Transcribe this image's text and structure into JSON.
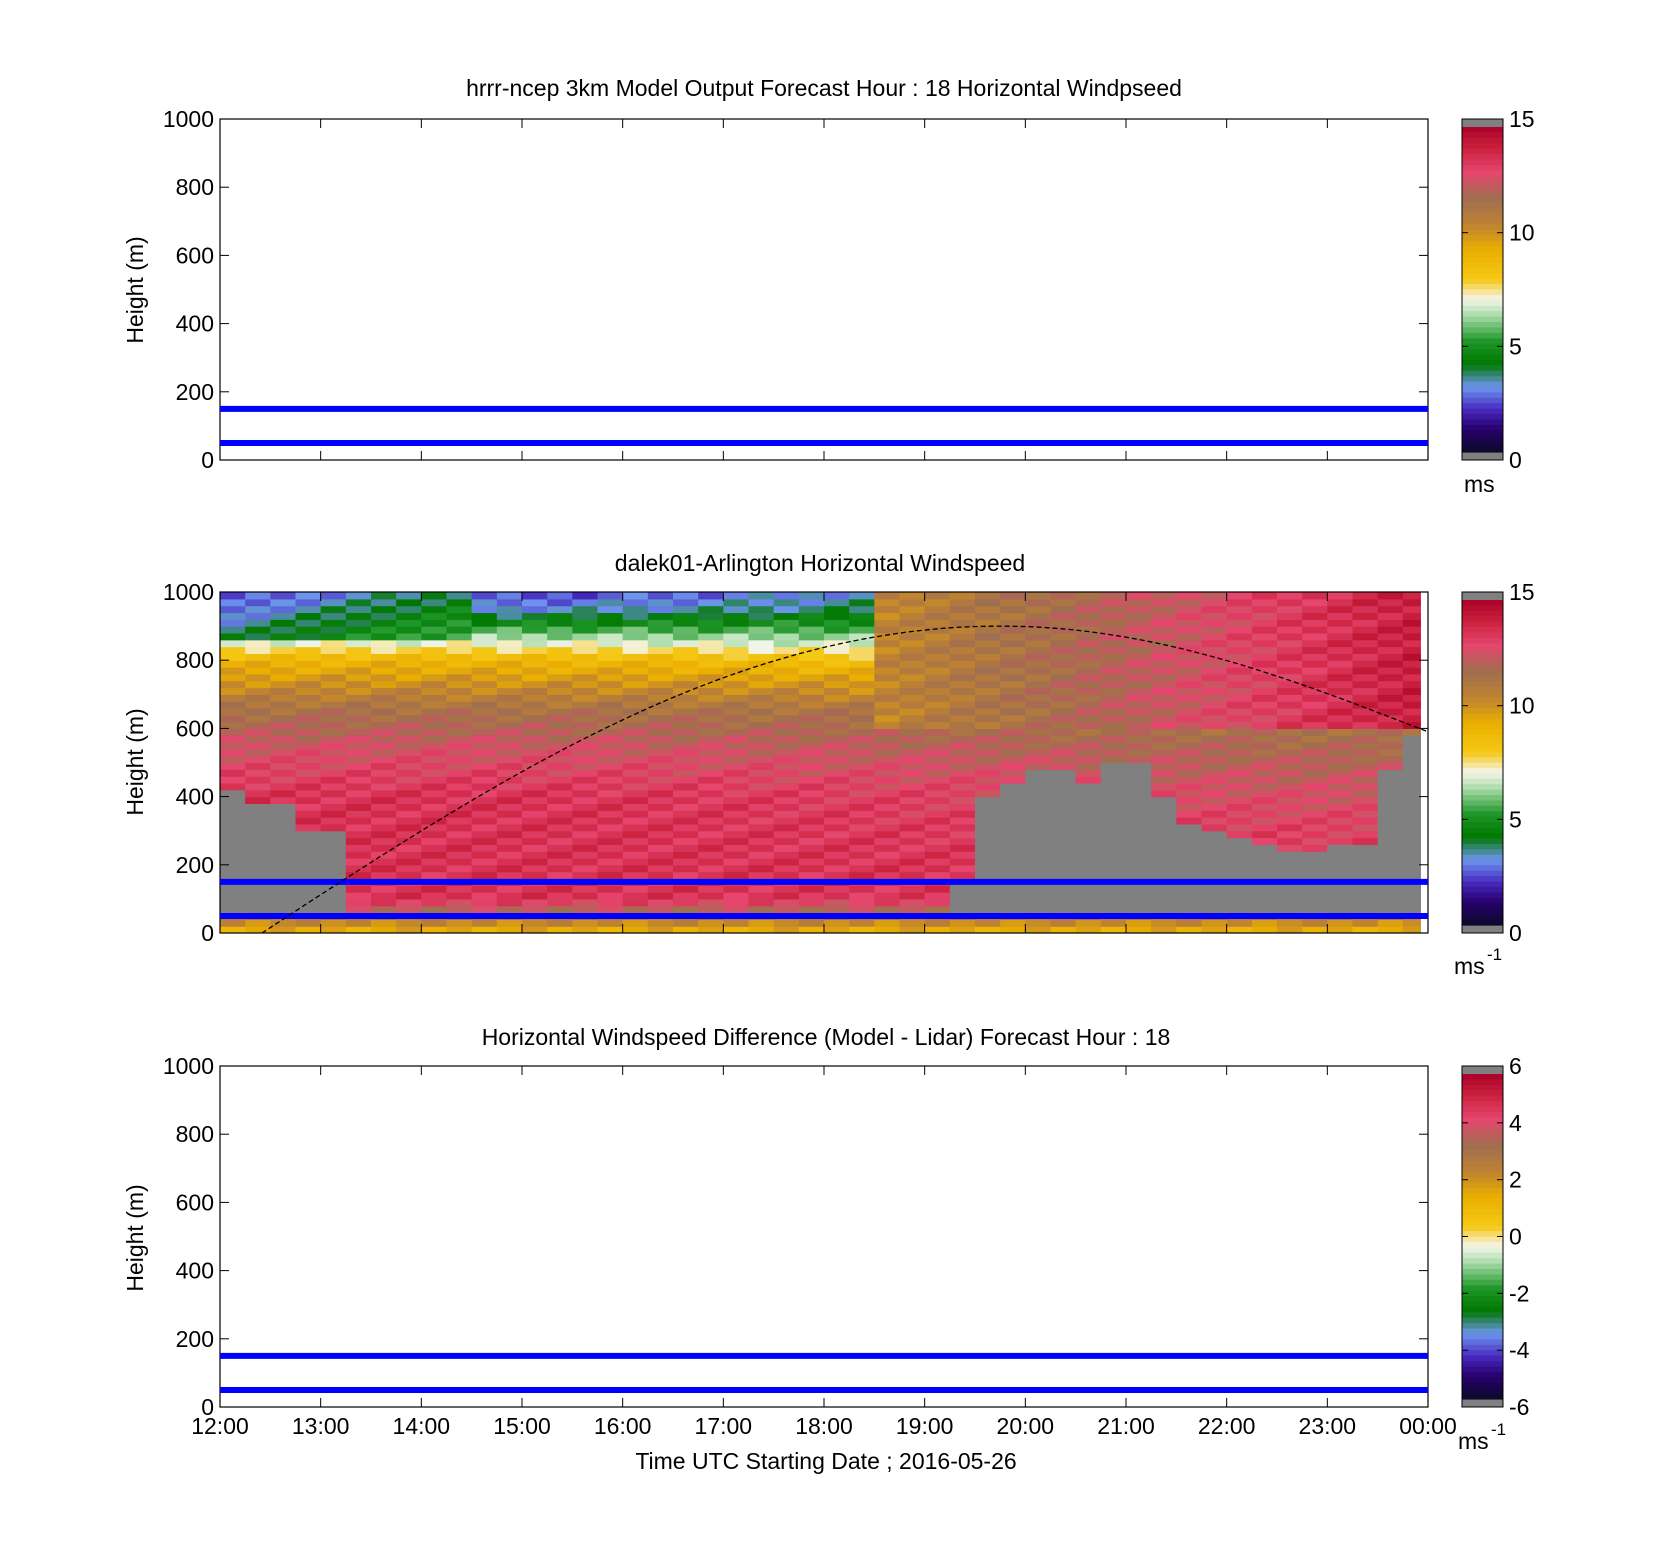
{
  "colors": {
    "reference_lines": "#0000ff",
    "no_data": "#808080",
    "axes": "#000000",
    "diurnal_curve": "#000000"
  },
  "x_axis": {
    "ticks": [
      "12:00",
      "13:00",
      "14:00",
      "15:00",
      "16:00",
      "17:00",
      "18:00",
      "19:00",
      "20:00",
      "21:00",
      "22:00",
      "23:00",
      "00:00"
    ],
    "label": "Time UTC  Starting Date ; 2016-05-26"
  },
  "chart_data": [
    {
      "type": "heatmap",
      "title": "hrrr-ncep 3km Model Output   Forecast Hour : 18 Horizontal Windpseed",
      "ylabel": "Height (m)",
      "ylim": [
        0,
        1000
      ],
      "xlim": [
        "12:00",
        "00:00"
      ],
      "yticks": [
        "0",
        "200",
        "400",
        "600",
        "800",
        "1000"
      ],
      "colorbar": {
        "min": 0,
        "max": 15,
        "ticks": [
          "0",
          "5",
          "10",
          "15"
        ],
        "unit": "ms",
        "unit_sup": ""
      },
      "reference_lines_m": [
        50,
        150
      ],
      "data": "none shown"
    },
    {
      "type": "heatmap",
      "title": "dalek01-Arlington  Horizontal Windspeed",
      "ylabel": "Height (m)",
      "ylim": [
        0,
        1000
      ],
      "xlim": [
        "12:00",
        "00:00"
      ],
      "yticks": [
        "0",
        "200",
        "400",
        "600",
        "800",
        "1000"
      ],
      "colorbar": {
        "min": 0,
        "max": 15,
        "ticks": [
          "0",
          "5",
          "10",
          "15"
        ],
        "unit": "ms",
        "unit_sup": "-1"
      },
      "reference_lines_m": [
        50,
        150
      ],
      "columns_hours": [
        12.125,
        12.375,
        12.625,
        12.875,
        13.125,
        13.375,
        13.625,
        13.875,
        14.125,
        14.375,
        14.625,
        14.875,
        15.125,
        15.375,
        15.625,
        15.875,
        16.125,
        16.375,
        16.625,
        16.875,
        17.125,
        17.375,
        17.625,
        17.875,
        18.125,
        18.375,
        18.625,
        18.875,
        19.125,
        19.375,
        19.625,
        19.875,
        20.125,
        20.375,
        20.625,
        20.875,
        21.125,
        21.375,
        21.625,
        21.875,
        22.125,
        22.375,
        22.625,
        22.875,
        23.125,
        23.375,
        23.625,
        23.875
      ],
      "gray_top_m": [
        430,
        380,
        380,
        300,
        300,
        0,
        0,
        0,
        0,
        0,
        0,
        0,
        0,
        0,
        0,
        0,
        0,
        0,
        0,
        0,
        0,
        0,
        0,
        0,
        0,
        0,
        0,
        0,
        0,
        170,
        400,
        450,
        480,
        480,
        450,
        500,
        500,
        400,
        320,
        300,
        280,
        270,
        250,
        240,
        270,
        260,
        480,
        580
      ],
      "windspeed_profile_ms": [
        {
          "height_m": [
            0,
            100,
            150,
            300,
            500,
            650,
            750,
            850,
            950,
            1000
          ],
          "speed_ms": [
            9,
            13,
            13.5,
            13,
            12,
            11,
            9,
            6,
            5,
            5
          ]
        },
        {
          "height_m": [
            0,
            100,
            200,
            400,
            550,
            650,
            800,
            950,
            1000
          ],
          "speed_ms": [
            9,
            13.5,
            13.5,
            13.5,
            12.5,
            11.5,
            9,
            3,
            2
          ]
        }
      ],
      "diurnal_curve": {
        "label": "",
        "peak_time": "19:45",
        "peak_height_m": 900,
        "start": [
          "12:25",
          0
        ],
        "end": [
          "00:00",
          590
        ]
      },
      "colormap": "gray-purple-blue-green-white-yellow-orange-brown-red-gray"
    },
    {
      "type": "heatmap",
      "title": "Horizontal Windspeed Difference (Model - Lidar) Forecast Hour : 18",
      "ylabel": "Height (m)",
      "ylim": [
        0,
        1000
      ],
      "xlim": [
        "12:00",
        "00:00"
      ],
      "yticks": [
        "0",
        "200",
        "400",
        "600",
        "800",
        "1000"
      ],
      "colorbar": {
        "min": -6,
        "max": 6,
        "ticks": [
          "-6",
          "-4",
          "-2",
          "0",
          "2",
          "4",
          "6"
        ],
        "unit": "ms",
        "unit_sup": "-1"
      },
      "reference_lines_m": [
        50,
        150
      ],
      "data": "none shown"
    }
  ]
}
